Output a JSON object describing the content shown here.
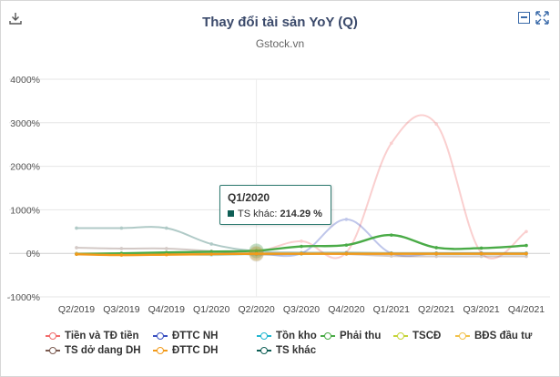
{
  "title": "Thay đổi tài sản YoY (Q)",
  "subtitle": "Gstock.vn",
  "toolbar": {
    "download_icon": "download-icon",
    "minimize_icon": "minimize-icon",
    "expand_icon": "expand-icon"
  },
  "tooltip": {
    "title": "Q1/2020",
    "series": "TS khác",
    "value": "214.29 %"
  },
  "chart_data": {
    "type": "line",
    "title": "Thay đổi tài sản YoY (Q)",
    "subtitle": "Gstock.vn",
    "categories": [
      "Q2/2019",
      "Q3/2019",
      "Q4/2019",
      "Q1/2020",
      "Q2/2020",
      "Q3/2020",
      "Q4/2020",
      "Q1/2021",
      "Q2/2021",
      "Q3/2021",
      "Q4/2021"
    ],
    "ylim": [
      -1000,
      4000
    ],
    "yticks": [
      4000,
      3000,
      2000,
      1000,
      0,
      -1000
    ],
    "ytick_labels": [
      "4000%",
      "3000%",
      "2000%",
      "1000%",
      "0%",
      "-1000%"
    ],
    "highlight_index": 4,
    "series": [
      {
        "name": "Tiền và TĐ tiền",
        "color": "#f26b6b",
        "faded": true,
        "values": [
          -20,
          -30,
          -10,
          20,
          30,
          280,
          20,
          2530,
          2970,
          10,
          500
        ]
      },
      {
        "name": "ĐTTC NH",
        "color": "#3a50c0",
        "faded": true,
        "values": [
          0,
          0,
          0,
          0,
          0,
          0,
          780,
          0,
          0,
          0,
          0
        ]
      },
      {
        "name": "Tồn kho",
        "color": "#21b6d0",
        "faded": true,
        "values": [
          -10,
          -10,
          -10,
          -40,
          -20,
          -20,
          0,
          -10,
          -20,
          -20,
          -20
        ]
      },
      {
        "name": "Phải thu",
        "color": "#4aab47",
        "faded": false,
        "values": [
          -20,
          0,
          20,
          40,
          60,
          160,
          190,
          420,
          130,
          120,
          180
        ]
      },
      {
        "name": "TSCĐ",
        "color": "#c6d43a",
        "faded": true,
        "values": [
          0,
          0,
          0,
          0,
          0,
          0,
          0,
          0,
          0,
          0,
          0
        ]
      },
      {
        "name": "BĐS đầu tư",
        "color": "#f2c14a",
        "faded": true,
        "values": [
          0,
          0,
          0,
          0,
          0,
          0,
          0,
          0,
          0,
          0,
          0
        ]
      },
      {
        "name": "TS dở dang DH",
        "color": "#7a5a50",
        "faded": true,
        "values": [
          130,
          110,
          110,
          50,
          -30,
          -10,
          -20,
          -60,
          -70,
          -70,
          -70
        ]
      },
      {
        "name": "ĐTTC DH",
        "color": "#f29a1a",
        "faded": false,
        "values": [
          -20,
          -40,
          -30,
          -20,
          -10,
          -10,
          -10,
          -10,
          -10,
          -10,
          -10
        ]
      },
      {
        "name": "TS khác",
        "color": "#0e5e55",
        "faded": true,
        "values": [
          580,
          580,
          580,
          214.29,
          50,
          20,
          20,
          10,
          10,
          10,
          10
        ]
      }
    ]
  }
}
